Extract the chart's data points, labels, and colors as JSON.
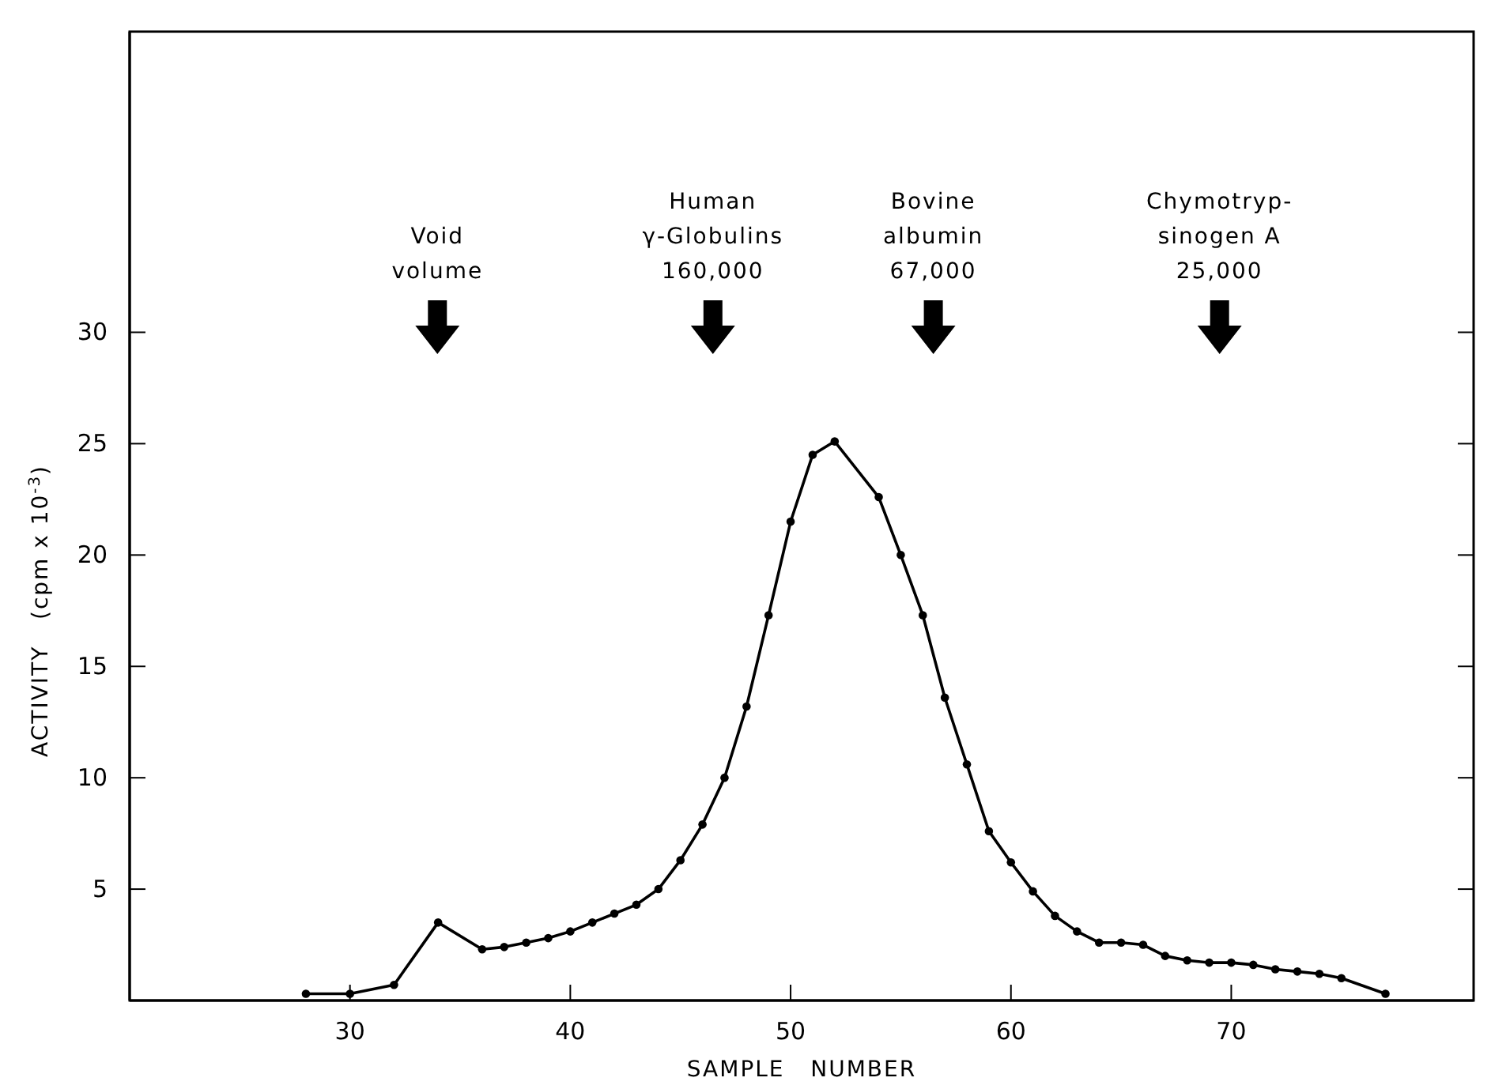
{
  "chart_data": {
    "type": "line",
    "xlabel": "SAMPLE   NUMBER",
    "ylabel": "ACTIVITY   (cpm x 10$^{-3}$)",
    "x": [
      28,
      30,
      32,
      34,
      36,
      37,
      38,
      39,
      40,
      41,
      42,
      43,
      44,
      45,
      46,
      47,
      48,
      49,
      50,
      51,
      52,
      54,
      55,
      56,
      57,
      58,
      59,
      60,
      61,
      62,
      63,
      64,
      65,
      66,
      67,
      68,
      69,
      70,
      71,
      72,
      73,
      74,
      75,
      77
    ],
    "values": [
      0.3,
      0.3,
      0.7,
      3.5,
      2.3,
      2.4,
      2.6,
      2.8,
      3.1,
      3.5,
      3.9,
      4.3,
      5.0,
      6.3,
      7.9,
      10.0,
      13.2,
      17.3,
      21.5,
      24.5,
      25.1,
      22.6,
      20.0,
      17.3,
      13.6,
      10.6,
      7.6,
      6.2,
      4.9,
      3.8,
      3.1,
      2.6,
      2.6,
      2.5,
      2.0,
      1.8,
      1.7,
      1.7,
      1.6,
      1.4,
      1.3,
      1.2,
      1.0,
      0.3
    ],
    "color": "#000000",
    "marker": "circle",
    "line_style": "solid",
    "xlim": [
      20,
      81
    ],
    "ylim": [
      0,
      43.5
    ],
    "xticks": [
      30,
      40,
      50,
      60,
      70
    ],
    "yticks": [
      5,
      10,
      15,
      20,
      25,
      30
    ],
    "grid": false,
    "annotations": [
      "Void\nvolume",
      "Human\nγ-Globulins\n160,000",
      "Bovine\nalbumin\n67,000",
      "Chymotryp-\nsinogen A\n25,000"
    ]
  }
}
